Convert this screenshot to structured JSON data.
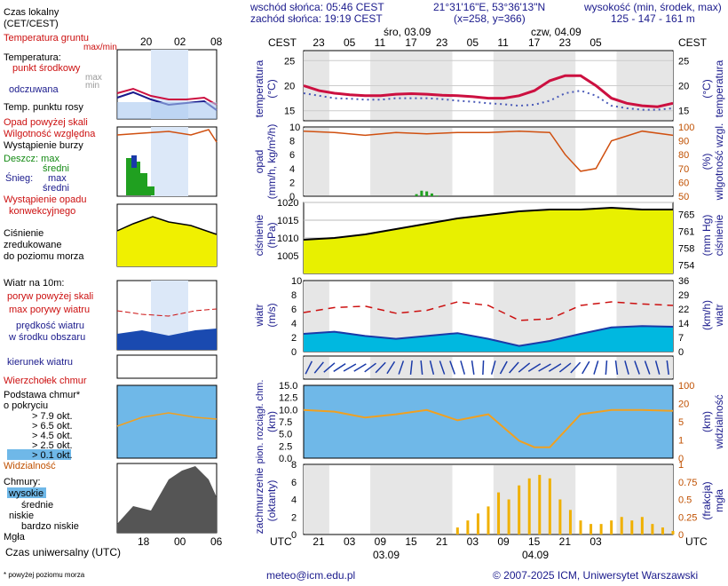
{
  "header": {
    "sunrise": "wschód słońca: 05:46 CEST",
    "sunset": "zachód słońca: 19:19 CEST",
    "coords": "21°31'16\"E, 53°36'13\"N",
    "grid": "(x=258, y=366)",
    "altitude_title": "wysokość (min, środek, max)",
    "altitude_values": "125 - 147 - 161 m"
  },
  "legend": {
    "local_time": "Czas lokalny",
    "local_time_sub": "(CET/CEST)",
    "local_ticks": [
      "20",
      "02",
      "08"
    ],
    "ground_temp": "Temperatura gruntu",
    "maxmin": "max/min",
    "temperature": "Temperatura:",
    "mid_point": "punkt środkowy",
    "max": "max",
    "min": "min",
    "felt": "odczuwana",
    "dew": "Temp. punktu rosy",
    "precip_above": "Opad powyżej skali",
    "humidity": "Wilgotność względna",
    "storm": "Wystąpienie burzy",
    "rain": "Deszcz: max",
    "mean": "średni",
    "snow": "Śnieg:",
    "precip_occ": "Wystąpienie opadu",
    "convective": "konwekcyjnego",
    "pressure1": "Ciśnienie",
    "pressure2": "zredukowane",
    "pressure3": "do poziomu morza",
    "wind10": "Wiatr na 10m:",
    "gusts_above": "poryw powyżej skali",
    "gusts_max": "max porywy wiatru",
    "wind_speed": "prędkość wiatru",
    "wind_area": "w środku obszaru",
    "wind_dir": "kierunek wiatru",
    "cb": "Wierzchołek chmur",
    "cloud_base1": "Podstawa chmur*",
    "cloud_base2": "o pokryciu",
    "okt79": "> 7.9 okt.",
    "okt65": "> 6.5 okt.",
    "okt45": "> 4.5 okt.",
    "okt25": "> 2.5 okt.",
    "okt01": "> 0.1 okt.",
    "visibility": "Widzialność",
    "clouds": "Chmury:",
    "high": "wysokie",
    "middle": "średnie",
    "low": "niskie",
    "very_low": "bardzo niskie",
    "fog": "Mgła",
    "utc_label": "Czas uniwersalny (UTC)",
    "utc_ticks": [
      "18",
      "00",
      "06"
    ],
    "footnote": "* powyżej poziomu morza"
  },
  "axes": {
    "cest": "CEST",
    "utc": "UTC",
    "day1": "śro, 03.09",
    "day2": "czw, 04.09",
    "date1": "03.09",
    "date2": "04.09",
    "cest_ticks": [
      "23",
      "05",
      "11",
      "17",
      "23",
      "05",
      "11",
      "17",
      "23",
      "05"
    ],
    "utc_ticks": [
      "21",
      "03",
      "09",
      "15",
      "21",
      "03",
      "09",
      "15",
      "21",
      "03"
    ],
    "temp_label": "temperatura",
    "temp_unit": "(°C)",
    "precip_label": "opad",
    "precip_unit": "(mm/h, kg/m²/h)",
    "hum_label": "wilgotność wzgl.",
    "hum_unit": "(%)",
    "press_label": "ciśnienie",
    "press_unit": "(hPa)",
    "press_unit2": "(mm Hg)",
    "wind_label": "wiatr",
    "wind_unit": "(m/s)",
    "wind_unit2": "(km/h)",
    "cloud_label1": "pion. rozciągł. chm.",
    "cloud_unit1": "(km)",
    "vis_label": "widzialność",
    "vis_unit": "(km)",
    "cov_label": "zachmurzenie",
    "cov_unit": "(oktanty)",
    "fog_label": "mgła",
    "fog_unit": "(frakcja)"
  },
  "footer": {
    "email": "meteo@icm.edu.pl",
    "copyright": "© 2007-2025 ICM, Uniwersytet Warszawski"
  },
  "colors": {
    "temp": "#cc1040",
    "humidity": "#d05010",
    "pressure_line": "#000000",
    "wind_area": "#00b8e0",
    "gust": "#cc1010",
    "night_band": "#e6e6e6",
    "cloud_bg": "#6fb8e8",
    "fog": "#f0b000"
  },
  "chart_data": [
    {
      "type": "line",
      "title": "temperatura",
      "ylabel": "temperatura (°C)",
      "ylim": [
        13,
        27
      ],
      "x_hours": [
        0,
        3,
        6,
        9,
        12,
        15,
        18,
        21,
        24,
        27,
        30,
        33,
        36,
        39,
        42,
        45,
        48,
        51,
        54,
        57,
        60,
        63,
        66,
        69,
        72
      ],
      "series": [
        {
          "name": "punkt środkowy",
          "values": [
            20,
            19,
            18.5,
            18.2,
            18,
            18,
            18.3,
            18.4,
            18.3,
            18.1,
            18,
            17.8,
            17.5,
            17.5,
            18,
            19,
            21,
            22,
            22,
            20,
            17.5,
            16.5,
            16,
            15.8,
            16.5
          ]
        },
        {
          "name": "odczuwana",
          "values": [
            18.5,
            18,
            17.5,
            17.4,
            17.2,
            17.2,
            17.5,
            17.5,
            17.5,
            17.3,
            17,
            16.8,
            16.5,
            16.3,
            16,
            16.2,
            17,
            18.5,
            19,
            18,
            16,
            15.5,
            15.2,
            15.2,
            15.5
          ]
        }
      ]
    },
    {
      "type": "line",
      "title": "wilgotność wzgl.",
      "ylabel": "wilgotność wzgl. (%)",
      "ylim": [
        50,
        100
      ],
      "x_hours": [
        0,
        6,
        12,
        18,
        24,
        30,
        36,
        42,
        48,
        51,
        54,
        57,
        60,
        66,
        72
      ],
      "values": [
        97,
        96,
        94,
        96,
        95,
        96,
        96,
        97,
        96,
        80,
        68,
        70,
        90,
        97,
        94
      ]
    },
    {
      "type": "bar",
      "title": "opad",
      "ylabel": "opad (mm/h, kg/m²/h)",
      "ylim": [
        0,
        10
      ],
      "x_hours": [
        22,
        23,
        24,
        25,
        26
      ],
      "values": [
        0.3,
        0.8,
        0.7,
        0.4,
        0.1
      ]
    },
    {
      "type": "area",
      "title": "ciśnienie",
      "ylabel": "ciśnienie (hPa)",
      "ylim": [
        1000,
        1020
      ],
      "x_hours": [
        0,
        6,
        12,
        18,
        24,
        30,
        36,
        42,
        48,
        54,
        60,
        66,
        72
      ],
      "values": [
        1009.5,
        1010,
        1011,
        1012.5,
        1014,
        1015.5,
        1016.5,
        1017.5,
        1018,
        1018,
        1018.5,
        1018,
        1018
      ]
    },
    {
      "type": "line",
      "title": "wiatr",
      "ylabel": "wiatr (m/s)",
      "ylim": [
        0,
        10
      ],
      "x_hours": [
        0,
        6,
        12,
        18,
        24,
        30,
        36,
        42,
        48,
        54,
        60,
        66,
        72
      ],
      "series": [
        {
          "name": "prędkość wiatru",
          "values": [
            2.5,
            2.8,
            2.2,
            1.8,
            2.2,
            2.6,
            1.8,
            0.8,
            1.5,
            2.5,
            3.4,
            3.6,
            3.5
          ]
        },
        {
          "name": "max porywy wiatru",
          "values": [
            5.5,
            6.2,
            6.4,
            5.4,
            5.8,
            7,
            6.5,
            4.4,
            4.6,
            6.5,
            7,
            6.7,
            6.5
          ]
        }
      ]
    },
    {
      "type": "line",
      "title": "widzialność",
      "ylabel": "widzialność (km)",
      "ylim": [
        0,
        100
      ],
      "x_hours": [
        0,
        6,
        12,
        18,
        24,
        30,
        36,
        42,
        45,
        48,
        54,
        60,
        66,
        72
      ],
      "values": [
        20,
        18,
        12,
        15,
        20,
        10,
        15,
        2,
        1,
        1,
        15,
        20,
        20,
        19
      ]
    },
    {
      "type": "bar",
      "title": "mgła",
      "ylabel": "mgła (frakcja)",
      "ylim": [
        0,
        1
      ],
      "x_hours": [
        30,
        32,
        34,
        36,
        38,
        40,
        42,
        44,
        46,
        48,
        50,
        52,
        54,
        56,
        58,
        60,
        62,
        64,
        66,
        68,
        70,
        72
      ],
      "values": [
        0.1,
        0.2,
        0.3,
        0.4,
        0.6,
        0.5,
        0.7,
        0.8,
        0.85,
        0.8,
        0.5,
        0.35,
        0.2,
        0.15,
        0.15,
        0.2,
        0.25,
        0.2,
        0.25,
        0.15,
        0.1,
        0.05
      ]
    }
  ]
}
